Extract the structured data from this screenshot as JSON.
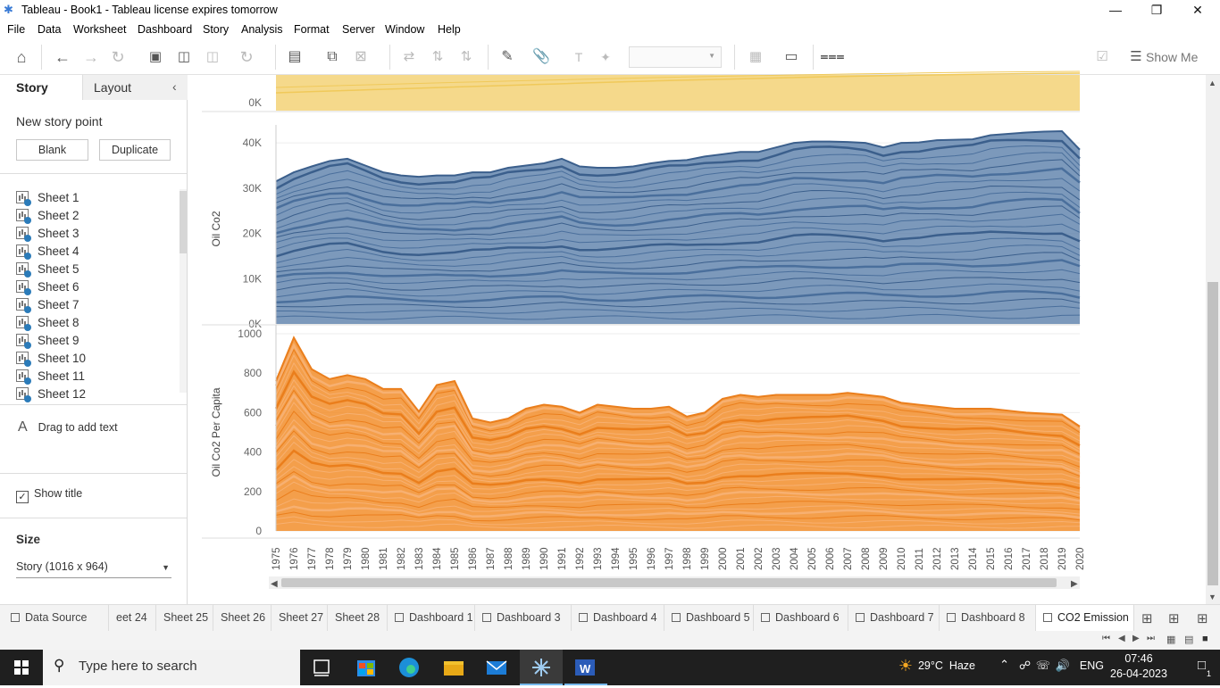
{
  "window": {
    "title": "Tableau - Book1 - Tableau license expires tomorrow"
  },
  "menu": [
    "File",
    "Data",
    "Worksheet",
    "Dashboard",
    "Story",
    "Analysis",
    "Format",
    "Server",
    "Window",
    "Help"
  ],
  "toolbar": {
    "show_me_label": "Show Me"
  },
  "left_panel": {
    "tab_story": "Story",
    "tab_layout": "Layout",
    "new_story_point": "New story point",
    "blank_button": "Blank",
    "duplicate_button": "Duplicate",
    "sheets": [
      "Sheet 1",
      "Sheet 2",
      "Sheet 3",
      "Sheet 4",
      "Sheet 5",
      "Sheet 6",
      "Sheet 7",
      "Sheet 8",
      "Sheet 9",
      "Sheet 10",
      "Sheet 11",
      "Sheet 12"
    ],
    "drag_text": "Drag to add text",
    "show_title_label": "Show title",
    "show_title_checked": true,
    "size_title": "Size",
    "size_value": "Story (1016 x 964)"
  },
  "chart_data": [
    {
      "type": "area",
      "title": "",
      "ylabel": "",
      "ytick_labels": [
        "0K"
      ],
      "color": "#f5d98b",
      "note": "top panel, partially scrolled off"
    },
    {
      "type": "area",
      "ylabel": "Oil Co2",
      "ylim": [
        0,
        42000
      ],
      "ytick_labels": [
        "0K",
        "10K",
        "20K",
        "30K",
        "40K"
      ],
      "color": "#5b7faa",
      "x": [
        1975,
        1976,
        1977,
        1978,
        1979,
        1980,
        1981,
        1982,
        1983,
        1984,
        1985,
        1986,
        1987,
        1988,
        1989,
        1990,
        1991,
        1992,
        1993,
        1994,
        1995,
        1996,
        1997,
        1998,
        1999,
        2000,
        2001,
        2002,
        2003,
        2004,
        2005,
        2006,
        2007,
        2008,
        2009,
        2010,
        2011,
        2012,
        2013,
        2014,
        2015,
        2016,
        2017,
        2018,
        2019,
        2020
      ],
      "total": [
        31500,
        33500,
        34800,
        36000,
        36500,
        35000,
        33500,
        32800,
        32500,
        32800,
        32800,
        33500,
        33500,
        34500,
        35000,
        35500,
        36500,
        34800,
        34500,
        34500,
        34800,
        35500,
        36000,
        36200,
        37000,
        37500,
        38000,
        38000,
        39000,
        40000,
        40300,
        40300,
        40200,
        40000,
        39000,
        40000,
        40100,
        40600,
        40700,
        40800,
        41700,
        42000,
        42300,
        42500,
        42600,
        38500
      ]
    },
    {
      "type": "area",
      "ylabel": "Oil Co2 Per Capita",
      "ylim": [
        0,
        1000
      ],
      "ytick_labels": [
        "0",
        "200",
        "400",
        "600",
        "800",
        "1000"
      ],
      "color": "#f28e2b",
      "x": [
        1975,
        1976,
        1977,
        1978,
        1979,
        1980,
        1981,
        1982,
        1983,
        1984,
        1985,
        1986,
        1987,
        1988,
        1989,
        1990,
        1991,
        1992,
        1993,
        1994,
        1995,
        1996,
        1997,
        1998,
        1999,
        2000,
        2001,
        2002,
        2003,
        2004,
        2005,
        2006,
        2007,
        2008,
        2009,
        2010,
        2011,
        2012,
        2013,
        2014,
        2015,
        2016,
        2017,
        2018,
        2019,
        2020
      ],
      "total": [
        760,
        980,
        820,
        770,
        790,
        770,
        720,
        720,
        605,
        740,
        760,
        570,
        550,
        570,
        620,
        640,
        630,
        600,
        640,
        630,
        620,
        620,
        630,
        580,
        600,
        670,
        690,
        680,
        690,
        690,
        690,
        690,
        700,
        690,
        680,
        650,
        640,
        630,
        620,
        620,
        620,
        610,
        600,
        595,
        590,
        530
      ]
    }
  ],
  "sheet_tabs": [
    "Data Source",
    "eet 24",
    "Sheet 25",
    "Sheet 26",
    "Sheet 27",
    "Sheet 28",
    "Dashboard 1",
    "Dashboard 3",
    "Dashboard 4",
    "Dashboard 5",
    "Dashboard 6",
    "Dashboard 7",
    "Dashboard 8",
    "CO2 Emission"
  ],
  "taskbar": {
    "search_placeholder": "Type here to search",
    "weather": "29°C  Haze",
    "lang": "ENG",
    "time": "07:46",
    "date": "26-04-2023",
    "notification_count": "1"
  },
  "colors": {
    "blue_area": "#5b7faa",
    "orange_area": "#f28e2b",
    "yellow_area": "#f5d98b"
  }
}
